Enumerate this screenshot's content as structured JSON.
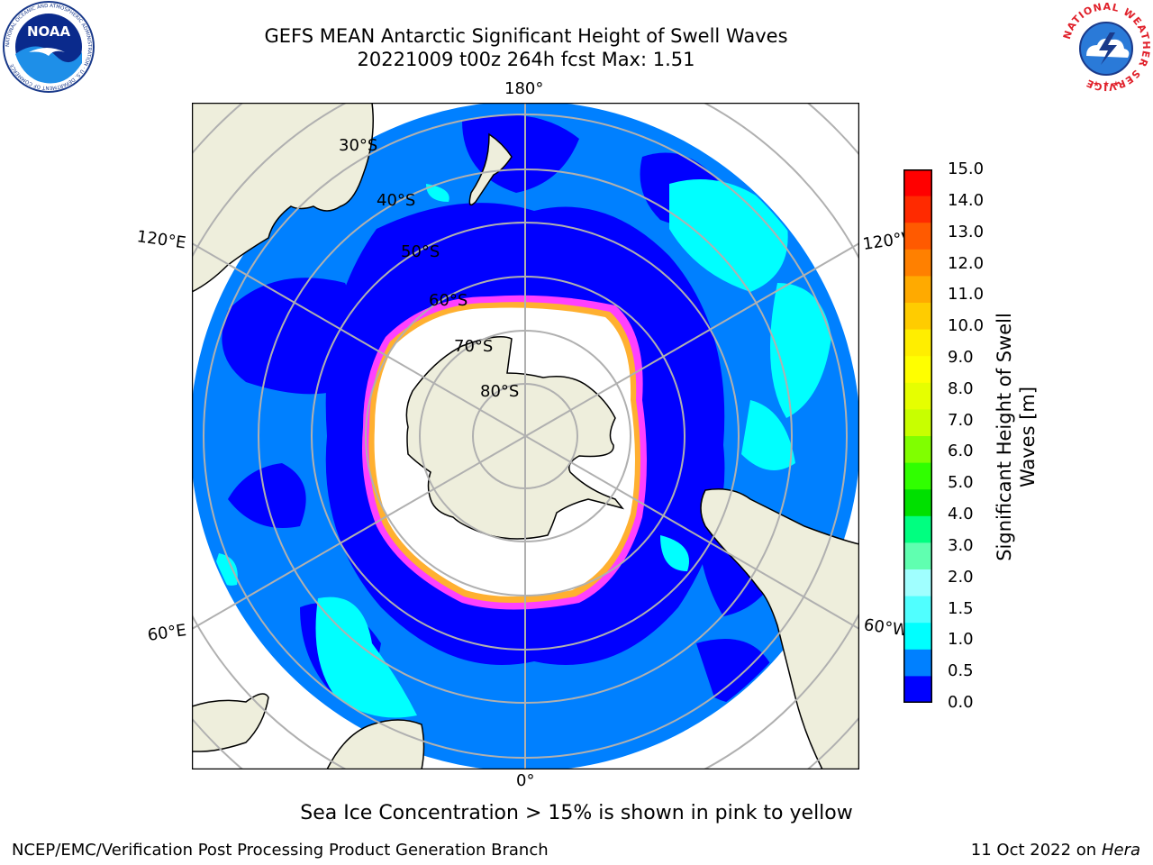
{
  "title": {
    "line1": "GEFS MEAN Antarctic Significant Height of Swell Waves",
    "line2": "20221009 t00z 264h fcst   Max: 1.51"
  },
  "logos": {
    "left": "NOAA",
    "left_ring": "NATIONAL OCEANIC AND ATMOSPHERIC ADMINISTRATION · U.S. DEPARTMENT OF COMMERCE",
    "right_ring": "NATIONAL WEATHER SERVICE"
  },
  "map": {
    "projection": "south-polar-stereographic",
    "lon_labels": {
      "top": "180°",
      "bottom": "0°",
      "upper_left": "120°E",
      "upper_right": "120°W",
      "lower_left": "60°E",
      "lower_right": "60°W"
    },
    "lat_labels": [
      "30°S",
      "40°S",
      "50°S",
      "60°S",
      "70°S",
      "80°S"
    ],
    "colors": {
      "land": "#eeeedc",
      "swell_0_05": "#0000ff",
      "swell_05_10": "#0080ff",
      "swell_10_15": "#00ffff",
      "sea_ice_edge_pink": "#ff40ff",
      "sea_ice_edge_yellow": "#ffb030",
      "sea_ice_interior": "#ffffff",
      "graticule": "#b0b0b0"
    }
  },
  "colorbar": {
    "title_line1": "Significant Height of Swell",
    "title_line2": "Waves [m]",
    "ticks": [
      "15.0",
      "14.0",
      "13.0",
      "12.0",
      "11.0",
      "10.0",
      "9.0",
      "8.0",
      "7.0",
      "6.0",
      "5.0",
      "4.0",
      "3.0",
      "2.0",
      "1.5",
      "1.0",
      "0.5",
      "0.0"
    ],
    "bands_top_to_bottom": [
      "#ff0000",
      "#ff2a00",
      "#ff5a00",
      "#ff8000",
      "#ffaa00",
      "#ffcc00",
      "#ffee00",
      "#ffff00",
      "#e6ff00",
      "#c8ff00",
      "#80ff00",
      "#30ff00",
      "#00e000",
      "#00ff80",
      "#60ffb0",
      "#a0ffff",
      "#50ffff",
      "#00ffff",
      "#0080ff",
      "#0000ff"
    ]
  },
  "note": "Sea Ice Concentration > 15% is shown in pink to yellow",
  "footer": {
    "left": "NCEP/EMC/Verification Post Processing Product Generation Branch",
    "right_prefix": "11 Oct 2022 on",
    "right_host": "Hera"
  }
}
